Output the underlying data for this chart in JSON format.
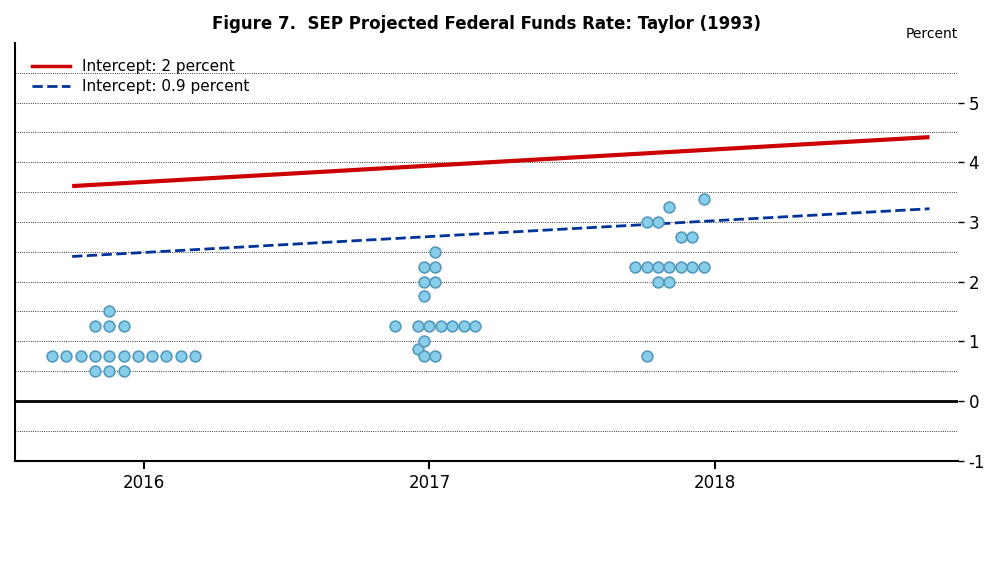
{
  "title": "Figure 7.  SEP Projected Federal Funds Rate: Taylor (1993)",
  "ylabel": "Percent",
  "xlim": [
    2015.55,
    2018.85
  ],
  "ylim": [
    -1.0,
    6.0
  ],
  "yticks": [
    -1,
    0,
    1,
    2,
    3,
    4,
    5
  ],
  "xticks": [
    2016,
    2017,
    2018
  ],
  "xticklabels": [
    "2016",
    "2017",
    "2018"
  ],
  "grid_y_values": [
    -0.5,
    0.5,
    1.0,
    1.5,
    2.0,
    2.5,
    3.0,
    3.5,
    4.0,
    4.5,
    5.0,
    5.5
  ],
  "red_line": {
    "x": [
      2015.75,
      2018.75
    ],
    "y": [
      3.6,
      4.42
    ],
    "color": "#cc0000",
    "linewidth": 3.0,
    "label": "Intercept: 2 percent"
  },
  "blue_line": {
    "x": [
      2015.75,
      2018.75
    ],
    "y": [
      2.42,
      3.22
    ],
    "color": "#003399",
    "linewidth": 2.0,
    "linestyle": "--",
    "label": "Intercept: 0.9 percent"
  },
  "dot_color": "#87CEEB",
  "dot_edgecolor": "#5599BB",
  "dot_size": 60,
  "dot_data": [
    [
      2015.68,
      0.75
    ],
    [
      2015.73,
      0.75
    ],
    [
      2015.78,
      0.75
    ],
    [
      2015.83,
      0.75
    ],
    [
      2015.88,
      0.75
    ],
    [
      2015.93,
      0.75
    ],
    [
      2015.98,
      0.75
    ],
    [
      2016.03,
      0.75
    ],
    [
      2016.08,
      0.75
    ],
    [
      2016.13,
      0.75
    ],
    [
      2016.18,
      0.75
    ],
    [
      2015.83,
      1.25
    ],
    [
      2015.88,
      1.25
    ],
    [
      2015.93,
      1.25
    ],
    [
      2015.88,
      1.5
    ],
    [
      2015.83,
      0.5
    ],
    [
      2015.88,
      0.5
    ],
    [
      2015.93,
      0.5
    ],
    [
      2016.88,
      1.25
    ],
    [
      2016.96,
      1.25
    ],
    [
      2017.0,
      1.25
    ],
    [
      2017.04,
      1.25
    ],
    [
      2017.08,
      1.25
    ],
    [
      2017.12,
      1.25
    ],
    [
      2017.16,
      1.25
    ],
    [
      2016.96,
      0.875
    ],
    [
      2016.98,
      2.25
    ],
    [
      2017.02,
      2.25
    ],
    [
      2016.98,
      2.0
    ],
    [
      2017.02,
      2.0
    ],
    [
      2016.98,
      1.75
    ],
    [
      2017.02,
      2.5
    ],
    [
      2016.98,
      1.0
    ],
    [
      2016.98,
      0.75
    ],
    [
      2017.02,
      0.75
    ],
    [
      2017.72,
      2.25
    ],
    [
      2017.76,
      2.25
    ],
    [
      2017.8,
      2.25
    ],
    [
      2017.84,
      2.25
    ],
    [
      2017.88,
      2.25
    ],
    [
      2017.92,
      2.25
    ],
    [
      2017.96,
      2.25
    ],
    [
      2017.8,
      2.0
    ],
    [
      2017.84,
      2.0
    ],
    [
      2017.76,
      3.0
    ],
    [
      2017.8,
      3.0
    ],
    [
      2017.84,
      3.25
    ],
    [
      2017.88,
      2.75
    ],
    [
      2017.92,
      2.75
    ],
    [
      2017.96,
      3.375
    ],
    [
      2017.76,
      0.75
    ]
  ],
  "background_color": "#ffffff"
}
